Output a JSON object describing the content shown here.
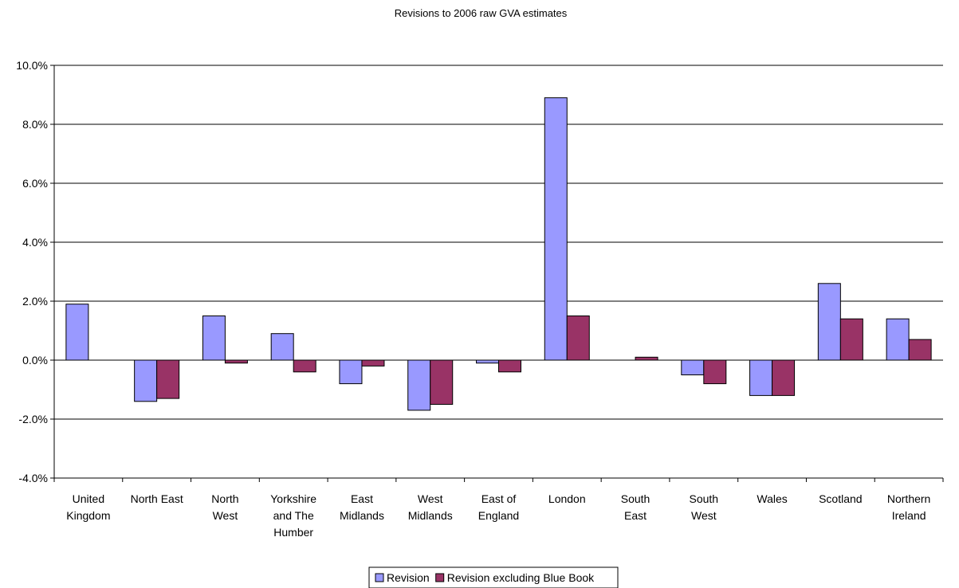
{
  "chart_data": {
    "type": "bar",
    "title": "Revisions to 2006 raw  GVA estimates",
    "xlabel": "",
    "ylabel": "",
    "ylim": [
      -4.0,
      10.0
    ],
    "yticks": [
      -4.0,
      -2.0,
      0.0,
      2.0,
      4.0,
      6.0,
      8.0,
      10.0
    ],
    "ytick_labels": [
      "-4.0%",
      "-2.0%",
      "0.0%",
      "2.0%",
      "4.0%",
      "6.0%",
      "8.0%",
      "10.0%"
    ],
    "grid": true,
    "legend_position": "bottom",
    "categories": [
      [
        "United",
        "Kingdom"
      ],
      [
        "North East"
      ],
      [
        "North",
        "West"
      ],
      [
        "Yorkshire",
        "and The",
        "Humber"
      ],
      [
        "East",
        "Midlands"
      ],
      [
        "West",
        "Midlands"
      ],
      [
        "East of",
        "England"
      ],
      [
        "London"
      ],
      [
        "South",
        "East"
      ],
      [
        "South",
        "West"
      ],
      [
        "Wales"
      ],
      [
        "Scotland"
      ],
      [
        "Northern",
        "Ireland"
      ]
    ],
    "series": [
      {
        "name": "Revision",
        "color": "#9999ff",
        "values": [
          1.9,
          -1.4,
          1.5,
          0.9,
          -0.8,
          -1.7,
          -0.1,
          8.9,
          0.0,
          -0.5,
          -1.2,
          2.6,
          1.4
        ]
      },
      {
        "name": "Revision excluding Blue Book",
        "color": "#993366",
        "values": [
          0.0,
          -1.3,
          -0.1,
          -0.4,
          -0.2,
          -1.5,
          -0.4,
          1.5,
          0.1,
          -0.8,
          -1.2,
          1.4,
          0.7
        ]
      }
    ]
  }
}
